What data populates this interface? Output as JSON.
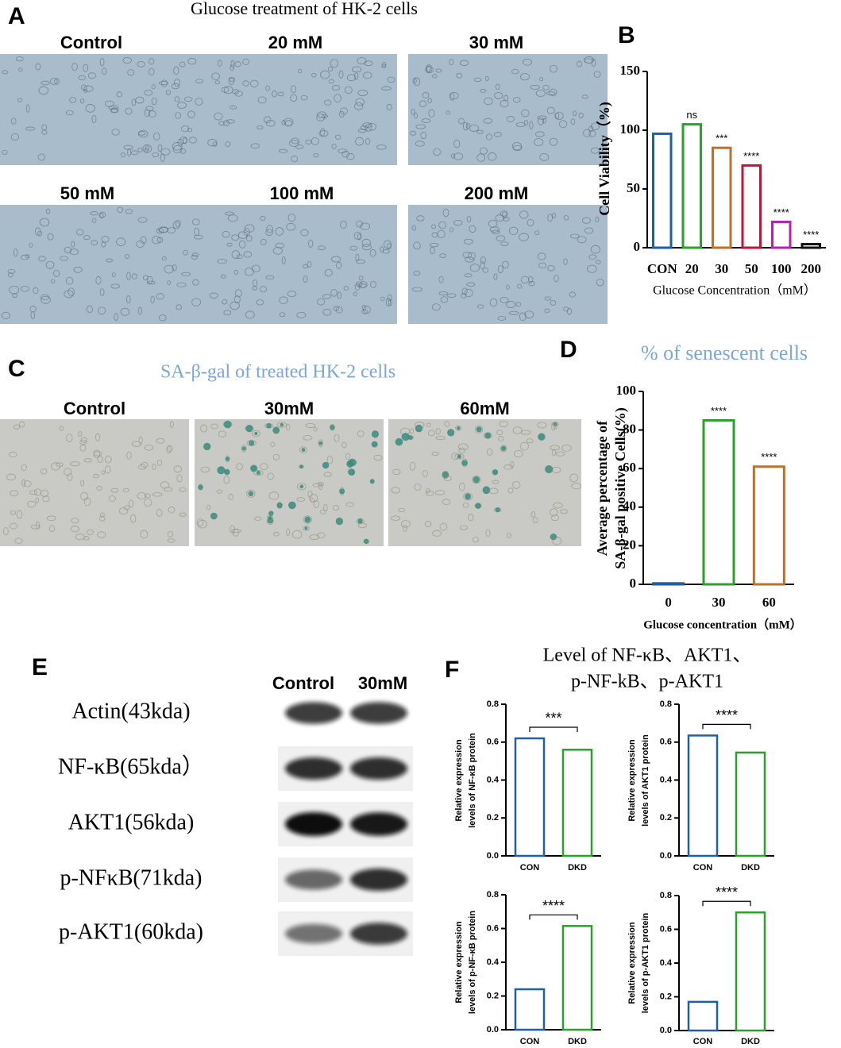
{
  "panel_letters": [
    "A",
    "B",
    "C",
    "D",
    "E",
    "F"
  ],
  "panel_a": {
    "title": "Glucose treatment of HK-2 cells",
    "labels": [
      "Control",
      "20 mM",
      "30 mM",
      "50 mM",
      "100 mM",
      "200 mM"
    ]
  },
  "panel_c": {
    "title": "SA-β-gal of  treated HK-2 cells",
    "labels": [
      "Control",
      "30mM",
      "60mM"
    ]
  },
  "panel_e": {
    "columns": [
      "Control",
      "30mM"
    ],
    "rows": [
      "Actin(43kda)",
      "NF-κB(65kda）",
      "AKT1(56kda)",
      "p-NFκB(71kda)",
      "p-AKT1(60kda)"
    ]
  },
  "panel_f": {
    "title": [
      "Level of NF-κB、AKT1、",
      "p-NF-kB、p-AKT1"
    ]
  },
  "chart_data": [
    {
      "type": "bar",
      "categories": [
        "CON",
        "20",
        "30",
        "50",
        "100",
        "200"
      ],
      "values": [
        97,
        105,
        85,
        70,
        22,
        3
      ],
      "colors": [
        "#1f5fa6",
        "#2ca02c",
        "#b8722c",
        "#c0143c",
        "#b521b5",
        "#111111"
      ],
      "annotations": [
        null,
        "ns",
        "***",
        "****",
        "****",
        "****"
      ],
      "ylabel": [
        "Cell Viability（%)"
      ],
      "xlabel": "Glucose Concentration（mM）",
      "ylim": [
        0,
        150
      ],
      "yticks": [
        0,
        50,
        100,
        150
      ]
    },
    {
      "type": "bar",
      "title": "% of senescent cells",
      "categories": [
        "0",
        "30",
        "60"
      ],
      "values": [
        0.5,
        85,
        61
      ],
      "colors": [
        "#1f5fa6",
        "#2ca02c",
        "#b8722c"
      ],
      "annotations": [
        null,
        "****",
        "****"
      ],
      "ylabel": [
        "Average percentage of",
        "SA-β-gal positive Cells(%)"
      ],
      "xlabel": "Glucose concentration（mM）",
      "ylim": [
        0,
        100
      ],
      "yticks": [
        0,
        20,
        40,
        60,
        80,
        100
      ]
    },
    {
      "type": "bar",
      "categories": [
        "CON",
        "DKD"
      ],
      "values": [
        0.62,
        0.56
      ],
      "colors": [
        "#1f5fa6",
        "#2ca02c"
      ],
      "annotation": "***",
      "ylabel": [
        "Relative expression",
        "levels of NF-κB protein"
      ],
      "ylim": [
        0,
        0.8
      ],
      "yticks": [
        {
          "value": 0,
          "label": "0.0"
        },
        0.2,
        0.4,
        0.6,
        0.8
      ]
    },
    {
      "type": "bar",
      "categories": [
        "CON",
        "DKD"
      ],
      "values": [
        0.635,
        0.545
      ],
      "colors": [
        "#1f5fa6",
        "#2ca02c"
      ],
      "annotation": "****",
      "ylabel": [
        "Relative expression",
        "levels of AKT1 protein"
      ],
      "ylim": [
        0,
        0.8
      ],
      "yticks": [
        {
          "value": 0,
          "label": "0.0"
        },
        0.2,
        0.4,
        0.6,
        0.8
      ]
    },
    {
      "type": "bar",
      "categories": [
        "CON",
        "DKD"
      ],
      "values": [
        0.24,
        0.615
      ],
      "colors": [
        "#1f5fa6",
        "#2ca02c"
      ],
      "annotation": "****",
      "ylabel": [
        "Relative expression",
        "levels of p-NF-κB protein"
      ],
      "ylim": [
        0,
        0.8
      ],
      "yticks": [
        {
          "value": 0,
          "label": "0.0"
        },
        0.2,
        0.4,
        0.6,
        0.8
      ]
    },
    {
      "type": "bar",
      "categories": [
        "CON",
        "DKD"
      ],
      "values": [
        0.17,
        0.7
      ],
      "colors": [
        "#1f5fa6",
        "#2ca02c"
      ],
      "annotation": "****",
      "ylabel": [
        "Relative expression",
        "levels of p-AKT1 protein"
      ],
      "ylim": [
        0,
        0.8
      ],
      "yticks": [
        {
          "value": 0,
          "label": "0.0"
        },
        0.2,
        0.4,
        0.6,
        0.8
      ]
    }
  ]
}
